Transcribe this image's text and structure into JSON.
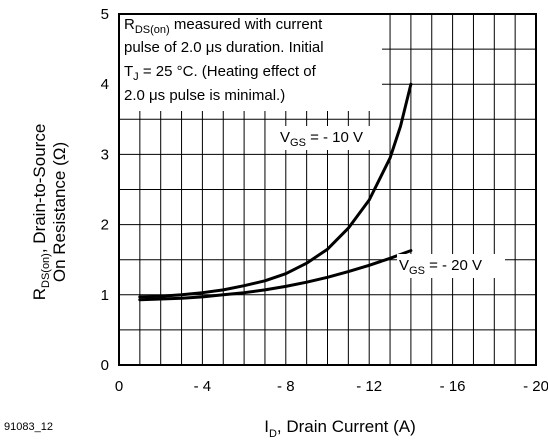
{
  "chart_data": {
    "type": "line",
    "figure_id": "91083_12",
    "xlabel_main": "I",
    "xlabel_sub": "D",
    "xlabel_rest": ", Drain Current (A)",
    "ylabel_line1_main": "R",
    "ylabel_line1_sub": "DS(on)",
    "ylabel_line1_rest": ", Drain-to-Source",
    "ylabel_line2": "On Resistance (Ω)",
    "x_ticks": [
      "0",
      "- 4",
      "- 8",
      "- 12",
      "- 16",
      "- 20"
    ],
    "y_ticks": [
      "0",
      "1",
      "2",
      "3",
      "4",
      "5"
    ],
    "xlim": [
      0,
      -20
    ],
    "ylim": [
      0,
      5
    ],
    "grid": true,
    "note": {
      "line1_main": "R",
      "line1_sub": "DS(on)",
      "line1_rest": " measured with current",
      "line2": "pulse of 2.0 μs duration.  Initial",
      "line3_main": "T",
      "line3_sub": "J",
      "line3_rest": " = 25 °C.  (Heating effect of",
      "line4": "2.0 μs pulse is minimal.)"
    },
    "series": [
      {
        "name_main": "V",
        "name_sub": "GS",
        "name_rest": " = - 10 V",
        "x": [
          -1,
          -2,
          -3,
          -4,
          -5,
          -6,
          -7,
          -8,
          -9,
          -10,
          -11,
          -12,
          -13,
          -13.5,
          -14
        ],
        "y": [
          0.97,
          0.98,
          1.0,
          1.03,
          1.07,
          1.13,
          1.2,
          1.3,
          1.45,
          1.65,
          1.95,
          2.35,
          2.95,
          3.4,
          4.0
        ]
      },
      {
        "name_main": "V",
        "name_sub": "GS",
        "name_rest": " = - 20 V",
        "x": [
          -1,
          -2,
          -3,
          -4,
          -5,
          -6,
          -7,
          -8,
          -9,
          -10,
          -11,
          -12,
          -13,
          -14
        ],
        "y": [
          0.93,
          0.94,
          0.95,
          0.97,
          1.0,
          1.03,
          1.07,
          1.12,
          1.18,
          1.25,
          1.33,
          1.42,
          1.52,
          1.63
        ]
      }
    ]
  }
}
